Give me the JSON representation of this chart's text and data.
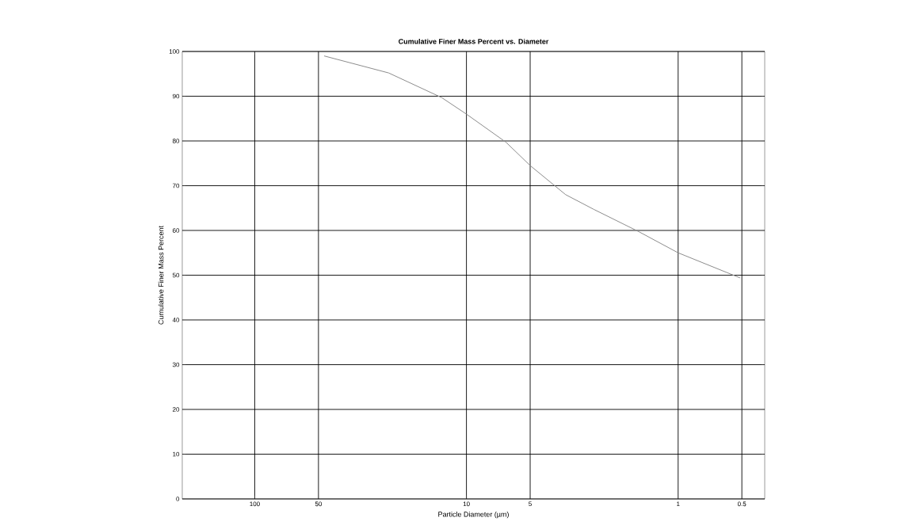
{
  "chart_data": {
    "type": "line",
    "title": "Cumulative Finer Mass Percent vs. Diameter",
    "xlabel": "Particle Diameter (µm)",
    "ylabel": "Cumulative Finer Mass Percent",
    "log": "x",
    "grid": true,
    "marker": "none",
    "line_style": "solid",
    "xlim": [
      220,
      0.39
    ],
    "xticks": [
      100,
      50,
      10,
      5,
      1,
      0.5
    ],
    "ylim": [
      0,
      100
    ],
    "yticks": [
      0,
      10,
      20,
      30,
      40,
      50,
      60,
      70,
      80,
      90,
      100
    ],
    "series": [
      {
        "color": "#8c8c8c",
        "x": [
          47,
          23.3,
          13.1,
          10,
          6.5,
          5,
          3.4,
          2.5,
          1.53,
          1,
          0.51
        ],
        "values": [
          99,
          95.2,
          89.7,
          86,
          79.7,
          74.5,
          68,
          64.7,
          59.7,
          55,
          49.4
        ]
      }
    ]
  }
}
